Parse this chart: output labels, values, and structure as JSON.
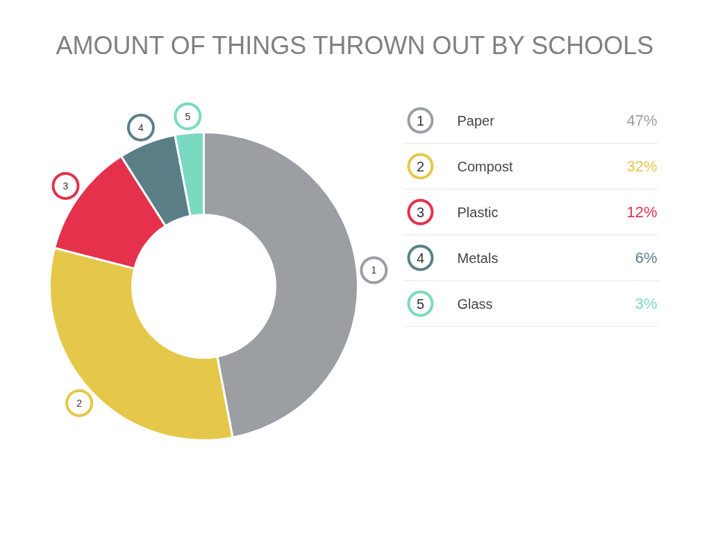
{
  "chart_data": {
    "type": "donut",
    "title": "AMOUNT OF THINGS THROWN OUT BY SCHOOLS",
    "categories": [
      "Paper",
      "Compost",
      "Plastic",
      "Metals",
      "Glass"
    ],
    "values": [
      47,
      32,
      12,
      6,
      3
    ],
    "colors": [
      "#9b9fa3",
      "#e5c84a",
      "#e6314c",
      "#5a7f87",
      "#7ad9c1"
    ],
    "value_labels": [
      "47%",
      "32%",
      "12%",
      "6%",
      "3%"
    ],
    "annotations": [
      "1",
      "2",
      "3",
      "4",
      "5"
    ],
    "legend": "right"
  }
}
